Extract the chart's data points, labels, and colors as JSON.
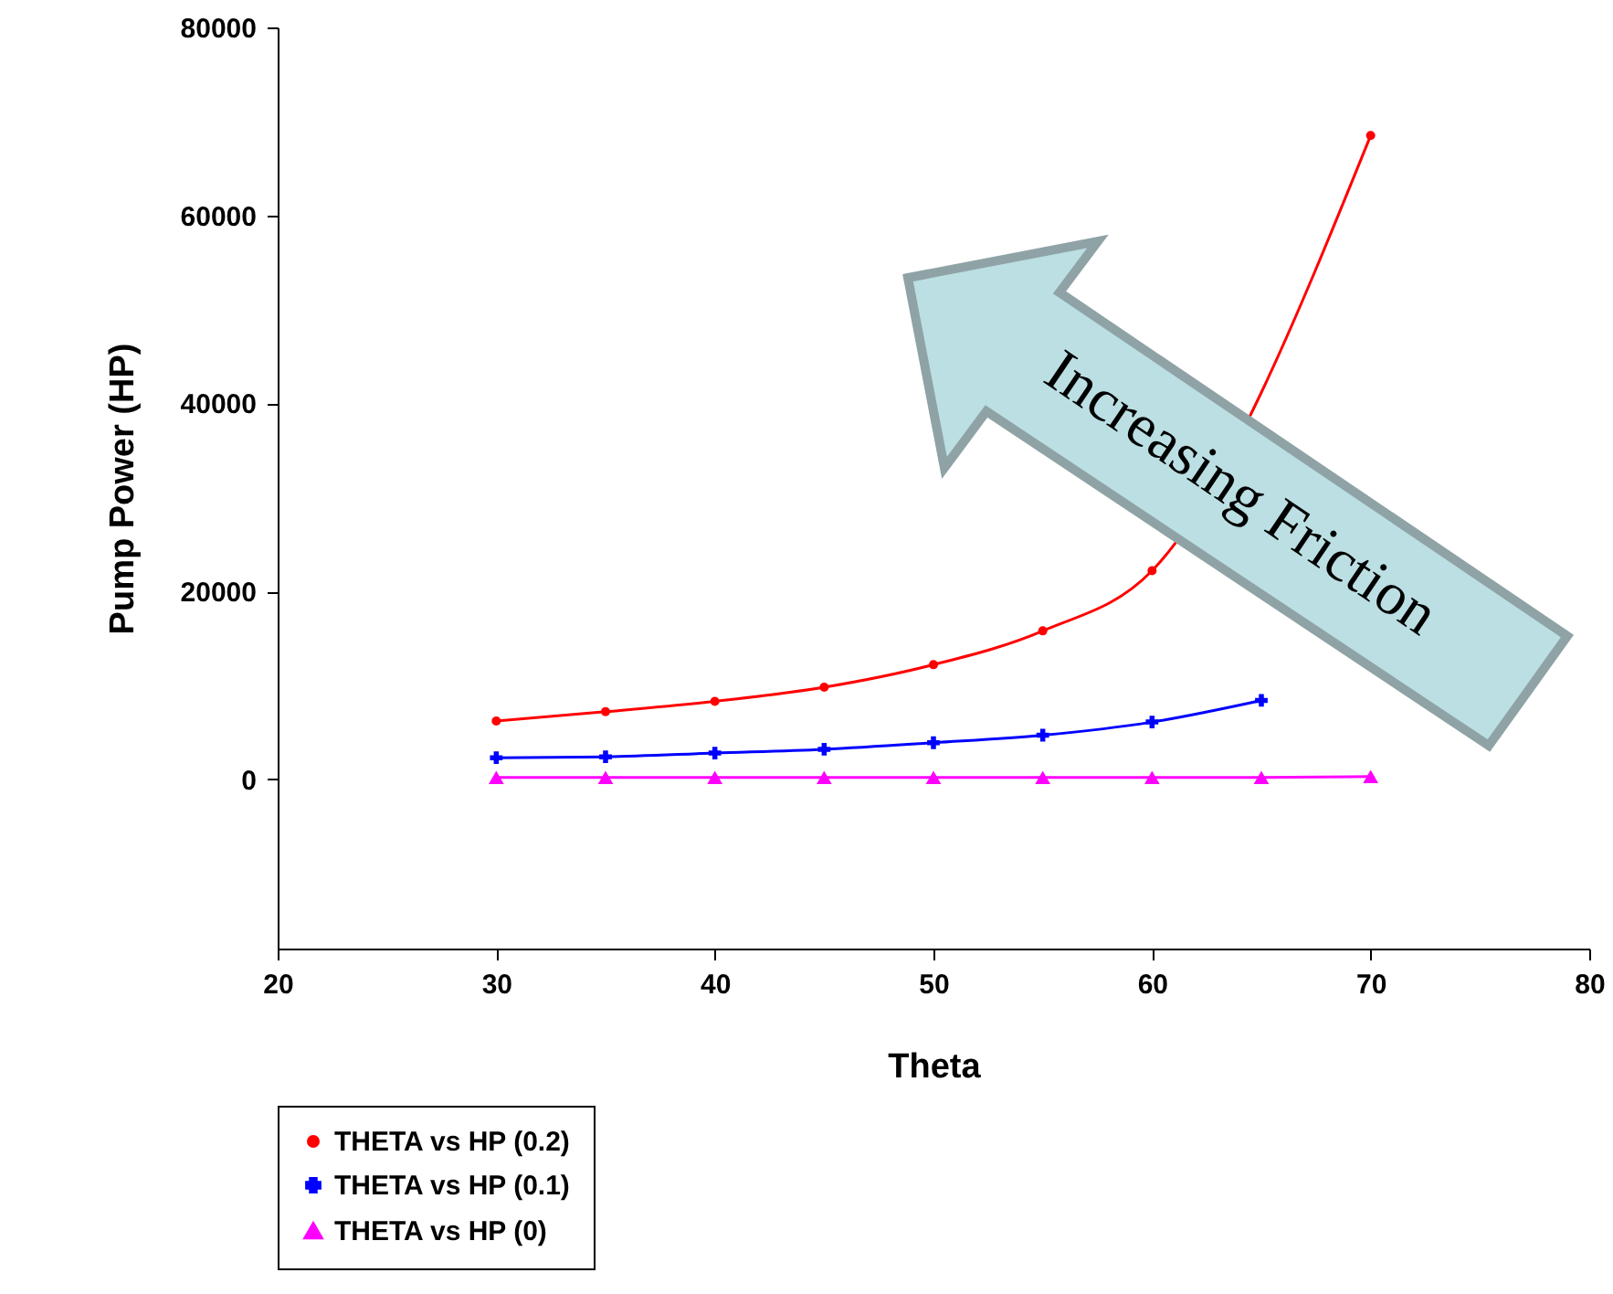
{
  "chart_data": {
    "type": "line",
    "xlabel": "Theta",
    "ylabel": "Pump Power (HP)",
    "x": [
      30,
      35,
      40,
      45,
      50,
      55,
      60,
      65,
      70
    ],
    "series": [
      {
        "name": "THETA vs HP (0.2)",
        "color": "#ff0000",
        "marker": "circle",
        "values": [
          6200,
          7200,
          8300,
          9800,
          12200,
          15800,
          22200,
          null,
          68500
        ]
      },
      {
        "name": "THETA vs HP (0.1)",
        "color": "#0000ff",
        "marker": "cross",
        "values": [
          2300,
          2400,
          2800,
          3200,
          3900,
          4700,
          6100,
          8400,
          null
        ]
      },
      {
        "name": "THETA vs HP (0)",
        "color": "#ff00ff",
        "marker": "triangle",
        "values": [
          200,
          200,
          200,
          200,
          200,
          200,
          200,
          200,
          300
        ]
      }
    ],
    "xlim": [
      20,
      80
    ],
    "xticks": [
      20,
      30,
      40,
      50,
      60,
      70,
      80
    ],
    "ylim": [
      -18000,
      80000
    ],
    "yticks": [
      0,
      20000,
      40000,
      60000,
      80000
    ],
    "grid": false,
    "legend": "bottom left",
    "line_style": "solid",
    "annotations": [
      "Increasing Friction"
    ]
  }
}
